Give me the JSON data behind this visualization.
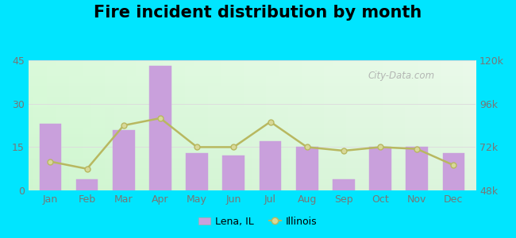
{
  "title": "Fire incident distribution by month",
  "months": [
    "Jan",
    "Feb",
    "Mar",
    "Apr",
    "May",
    "Jun",
    "Jul",
    "Aug",
    "Sep",
    "Oct",
    "Nov",
    "Dec"
  ],
  "bar_values": [
    23,
    4,
    21,
    43,
    13,
    12,
    17,
    15,
    4,
    15,
    15,
    13
  ],
  "line_values": [
    64000,
    60000,
    84000,
    88000,
    72000,
    72000,
    86000,
    72000,
    70000,
    72000,
    71000,
    62000
  ],
  "bar_color": "#c9a0dc",
  "bar_edge_color": "#c9a0dc",
  "line_color": "#b8b860",
  "line_marker": "o",
  "line_marker_facecolor": "#d8d898",
  "line_marker_edgecolor": "#b8b860",
  "background_color": "#00e5ff",
  "left_ylim": [
    0,
    45
  ],
  "right_ylim": [
    48000,
    120000
  ],
  "left_yticks": [
    0,
    15,
    30,
    45
  ],
  "right_yticks": [
    48000,
    72000,
    96000,
    120000
  ],
  "right_yticklabels": [
    "48k",
    "72k",
    "96k",
    "120k"
  ],
  "legend_lena_label": "Lena, IL",
  "legend_illinois_label": "Illinois",
  "title_fontsize": 15,
  "watermark": "City-Data.com"
}
